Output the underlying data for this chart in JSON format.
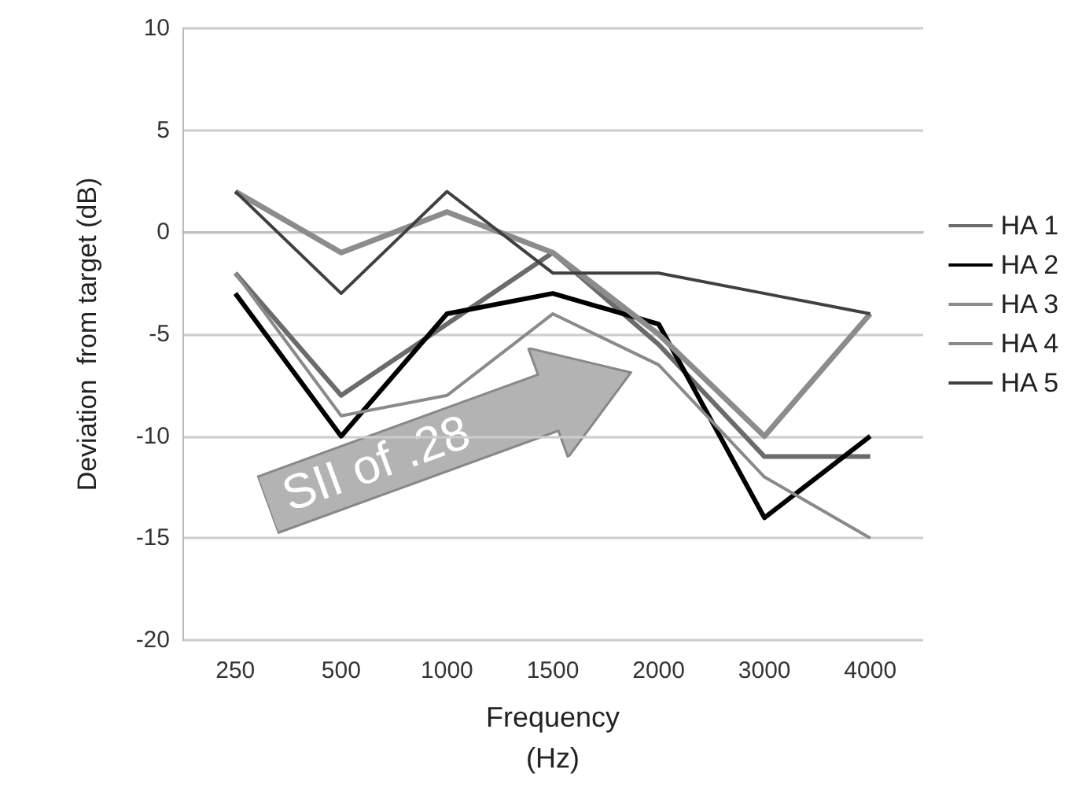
{
  "chart_data": {
    "type": "line",
    "xlabel": "Frequency\n(Hz)",
    "ylabel": "Deviation  from target (dB)",
    "categories": [
      "250",
      "500",
      "1000",
      "1500",
      "2000",
      "3000",
      "4000"
    ],
    "series": [
      {
        "name": "HA 1",
        "color": "#6b6b6b",
        "values": [
          -2,
          -8,
          -4.5,
          -1,
          -5.5,
          -11,
          -11
        ]
      },
      {
        "name": "HA 2",
        "color": "#000000",
        "values": [
          -3,
          -10,
          -4,
          -3,
          -4.5,
          -14,
          -10
        ]
      },
      {
        "name": "HA 3",
        "color": "#8c8c8c",
        "values": [
          2,
          -1,
          1,
          -1,
          -5,
          -10,
          -4
        ]
      },
      {
        "name": "HA 4",
        "color": "#8a8a8a",
        "values": [
          -2,
          -9,
          -8,
          -4,
          -6.5,
          -12,
          -15
        ]
      },
      {
        "name": "HA 5",
        "color": "#404040",
        "values": [
          2,
          -3,
          2,
          -2,
          -2,
          -3,
          -4
        ]
      }
    ],
    "ylim": [
      -20,
      10
    ],
    "yticks": [
      -20,
      -15,
      -10,
      -5,
      0,
      5,
      10
    ],
    "grid": "y",
    "legend": "right",
    "marker": "none",
    "line_style": "solid",
    "annotations": [
      "SII of .28"
    ]
  }
}
